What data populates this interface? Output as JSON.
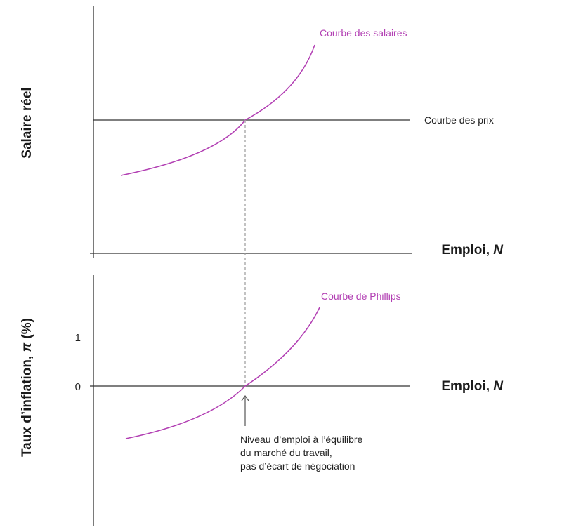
{
  "colors": {
    "axis": "#333333",
    "curve": "#b23fb3",
    "dashed": "#9a9a9a"
  },
  "top_panel": {
    "y_axis_title": "Salaire réel",
    "x_axis_title_prefix": "Emploi, ",
    "x_axis_title_var": "N",
    "wage_curve_label": "Courbe des salaires",
    "price_curve_label": "Courbe des prix"
  },
  "bottom_panel": {
    "y_axis_title_prefix": "Taux d’inflation, ",
    "y_axis_title_var": "π",
    "y_axis_title_suffix": " (%)",
    "x_axis_title_prefix": "Emploi, ",
    "x_axis_title_var": "N",
    "phillips_curve_label": "Courbe de Phillips",
    "ticks": [
      "1",
      "0"
    ]
  },
  "annotation": {
    "lines": [
      "Niveau d’emploi à l’équilibre",
      "du marché du travail,",
      "pas d’écart de négociation"
    ]
  }
}
